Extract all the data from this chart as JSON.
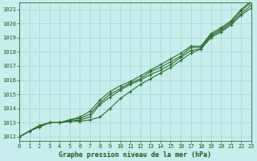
{
  "bg_color": "#c8eded",
  "grid_color": "#a8d8d8",
  "line_color": "#2d6e2d",
  "text_color": "#1a5c1a",
  "xlabel": "Graphe pression niveau de la mer (hPa)",
  "xlim": [
    0,
    23
  ],
  "ylim": [
    1011.7,
    1021.5
  ],
  "yticks": [
    1012,
    1013,
    1014,
    1015,
    1016,
    1017,
    1018,
    1019,
    1020,
    1021
  ],
  "xticks": [
    0,
    1,
    2,
    3,
    4,
    5,
    6,
    7,
    8,
    9,
    10,
    11,
    12,
    13,
    14,
    15,
    16,
    17,
    18,
    19,
    20,
    21,
    22,
    23
  ],
  "series": [
    [
      1012.0,
      1012.4,
      1012.7,
      1013.0,
      1013.0,
      1013.1,
      1013.1,
      1013.2,
      1013.4,
      1014.0,
      1014.7,
      1015.2,
      1015.7,
      1016.1,
      1016.5,
      1016.9,
      1017.4,
      1017.9,
      1018.2,
      1019.0,
      1019.4,
      1019.9,
      1020.6,
      1021.1
    ],
    [
      1012.0,
      1012.4,
      1012.7,
      1013.0,
      1013.0,
      1013.1,
      1013.2,
      1013.4,
      1014.3,
      1014.8,
      1015.3,
      1015.7,
      1016.0,
      1016.4,
      1016.7,
      1017.1,
      1017.6,
      1018.1,
      1018.2,
      1019.1,
      1019.5,
      1020.0,
      1020.7,
      1021.3
    ],
    [
      1012.0,
      1012.4,
      1012.8,
      1013.0,
      1013.0,
      1013.2,
      1013.3,
      1013.6,
      1014.4,
      1015.0,
      1015.4,
      1015.8,
      1016.1,
      1016.6,
      1016.9,
      1017.3,
      1017.7,
      1018.3,
      1018.3,
      1019.2,
      1019.6,
      1020.1,
      1020.9,
      1021.5
    ],
    [
      1012.0,
      1012.4,
      1012.8,
      1013.0,
      1013.0,
      1013.2,
      1013.4,
      1013.8,
      1014.6,
      1015.2,
      1015.6,
      1015.9,
      1016.3,
      1016.7,
      1017.1,
      1017.5,
      1017.9,
      1018.4,
      1018.4,
      1019.3,
      1019.7,
      1020.2,
      1021.0,
      1021.6
    ]
  ]
}
